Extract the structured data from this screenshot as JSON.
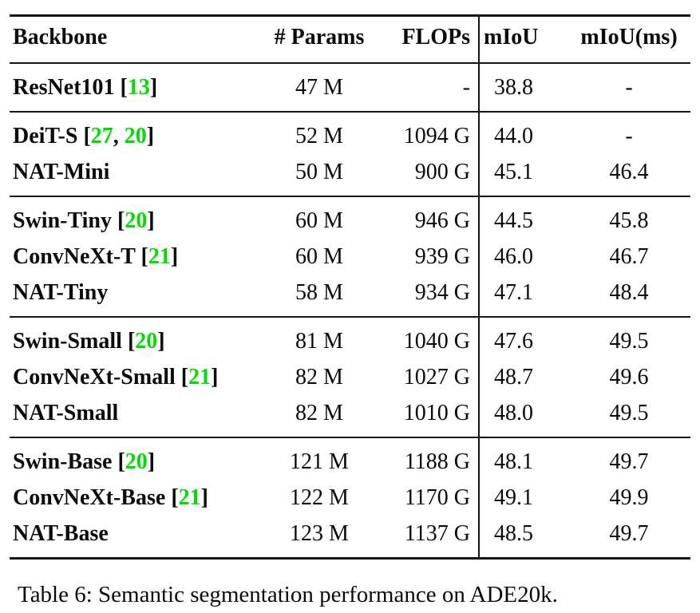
{
  "colors": {
    "citation": "#00dd00",
    "text": "#0b0b0b",
    "rule": "#151515"
  },
  "table": {
    "headers": {
      "backbone": "Backbone",
      "params": "# Params",
      "flops": "FLOPs",
      "miou": "mIoU",
      "miou_ms": "mIoU(ms)"
    },
    "groups": [
      {
        "rows": [
          {
            "name": "ResNet101",
            "cites": [
              "13"
            ],
            "params": "47 M",
            "flops": "-",
            "miou": "38.8",
            "miou_ms": "-"
          }
        ]
      },
      {
        "rows": [
          {
            "name": "DeiT-S",
            "cites": [
              "27",
              "20"
            ],
            "params": "52 M",
            "flops": "1094 G",
            "miou": "44.0",
            "miou_ms": "-"
          },
          {
            "name": "NAT-Mini",
            "cites": [],
            "params": "50 M",
            "flops": "900 G",
            "miou": "45.1",
            "miou_ms": "46.4"
          }
        ]
      },
      {
        "rows": [
          {
            "name": "Swin-Tiny",
            "cites": [
              "20"
            ],
            "params": "60 M",
            "flops": "946 G",
            "miou": "44.5",
            "miou_ms": "45.8"
          },
          {
            "name": "ConvNeXt-T",
            "cites": [
              "21"
            ],
            "params": "60 M",
            "flops": "939 G",
            "miou": "46.0",
            "miou_ms": "46.7"
          },
          {
            "name": "NAT-Tiny",
            "cites": [],
            "params": "58 M",
            "flops": "934 G",
            "miou": "47.1",
            "miou_ms": "48.4"
          }
        ]
      },
      {
        "rows": [
          {
            "name": "Swin-Small",
            "cites": [
              "20"
            ],
            "params": "81 M",
            "flops": "1040 G",
            "miou": "47.6",
            "miou_ms": "49.5"
          },
          {
            "name": "ConvNeXt-Small",
            "cites": [
              "21"
            ],
            "params": "82 M",
            "flops": "1027 G",
            "miou": "48.7",
            "miou_ms": "49.6"
          },
          {
            "name": "NAT-Small",
            "cites": [],
            "params": "82 M",
            "flops": "1010 G",
            "miou": "48.0",
            "miou_ms": "49.5"
          }
        ]
      },
      {
        "rows": [
          {
            "name": "Swin-Base",
            "cites": [
              "20"
            ],
            "params": "121 M",
            "flops": "1188 G",
            "miou": "48.1",
            "miou_ms": "49.7"
          },
          {
            "name": "ConvNeXt-Base",
            "cites": [
              "21"
            ],
            "params": "122 M",
            "flops": "1170 G",
            "miou": "49.1",
            "miou_ms": "49.9"
          },
          {
            "name": "NAT-Base",
            "cites": [],
            "params": "123 M",
            "flops": "1137 G",
            "miou": "48.5",
            "miou_ms": "49.7"
          }
        ]
      }
    ]
  },
  "caption": "Table 6: Semantic segmentation performance on ADE20k."
}
